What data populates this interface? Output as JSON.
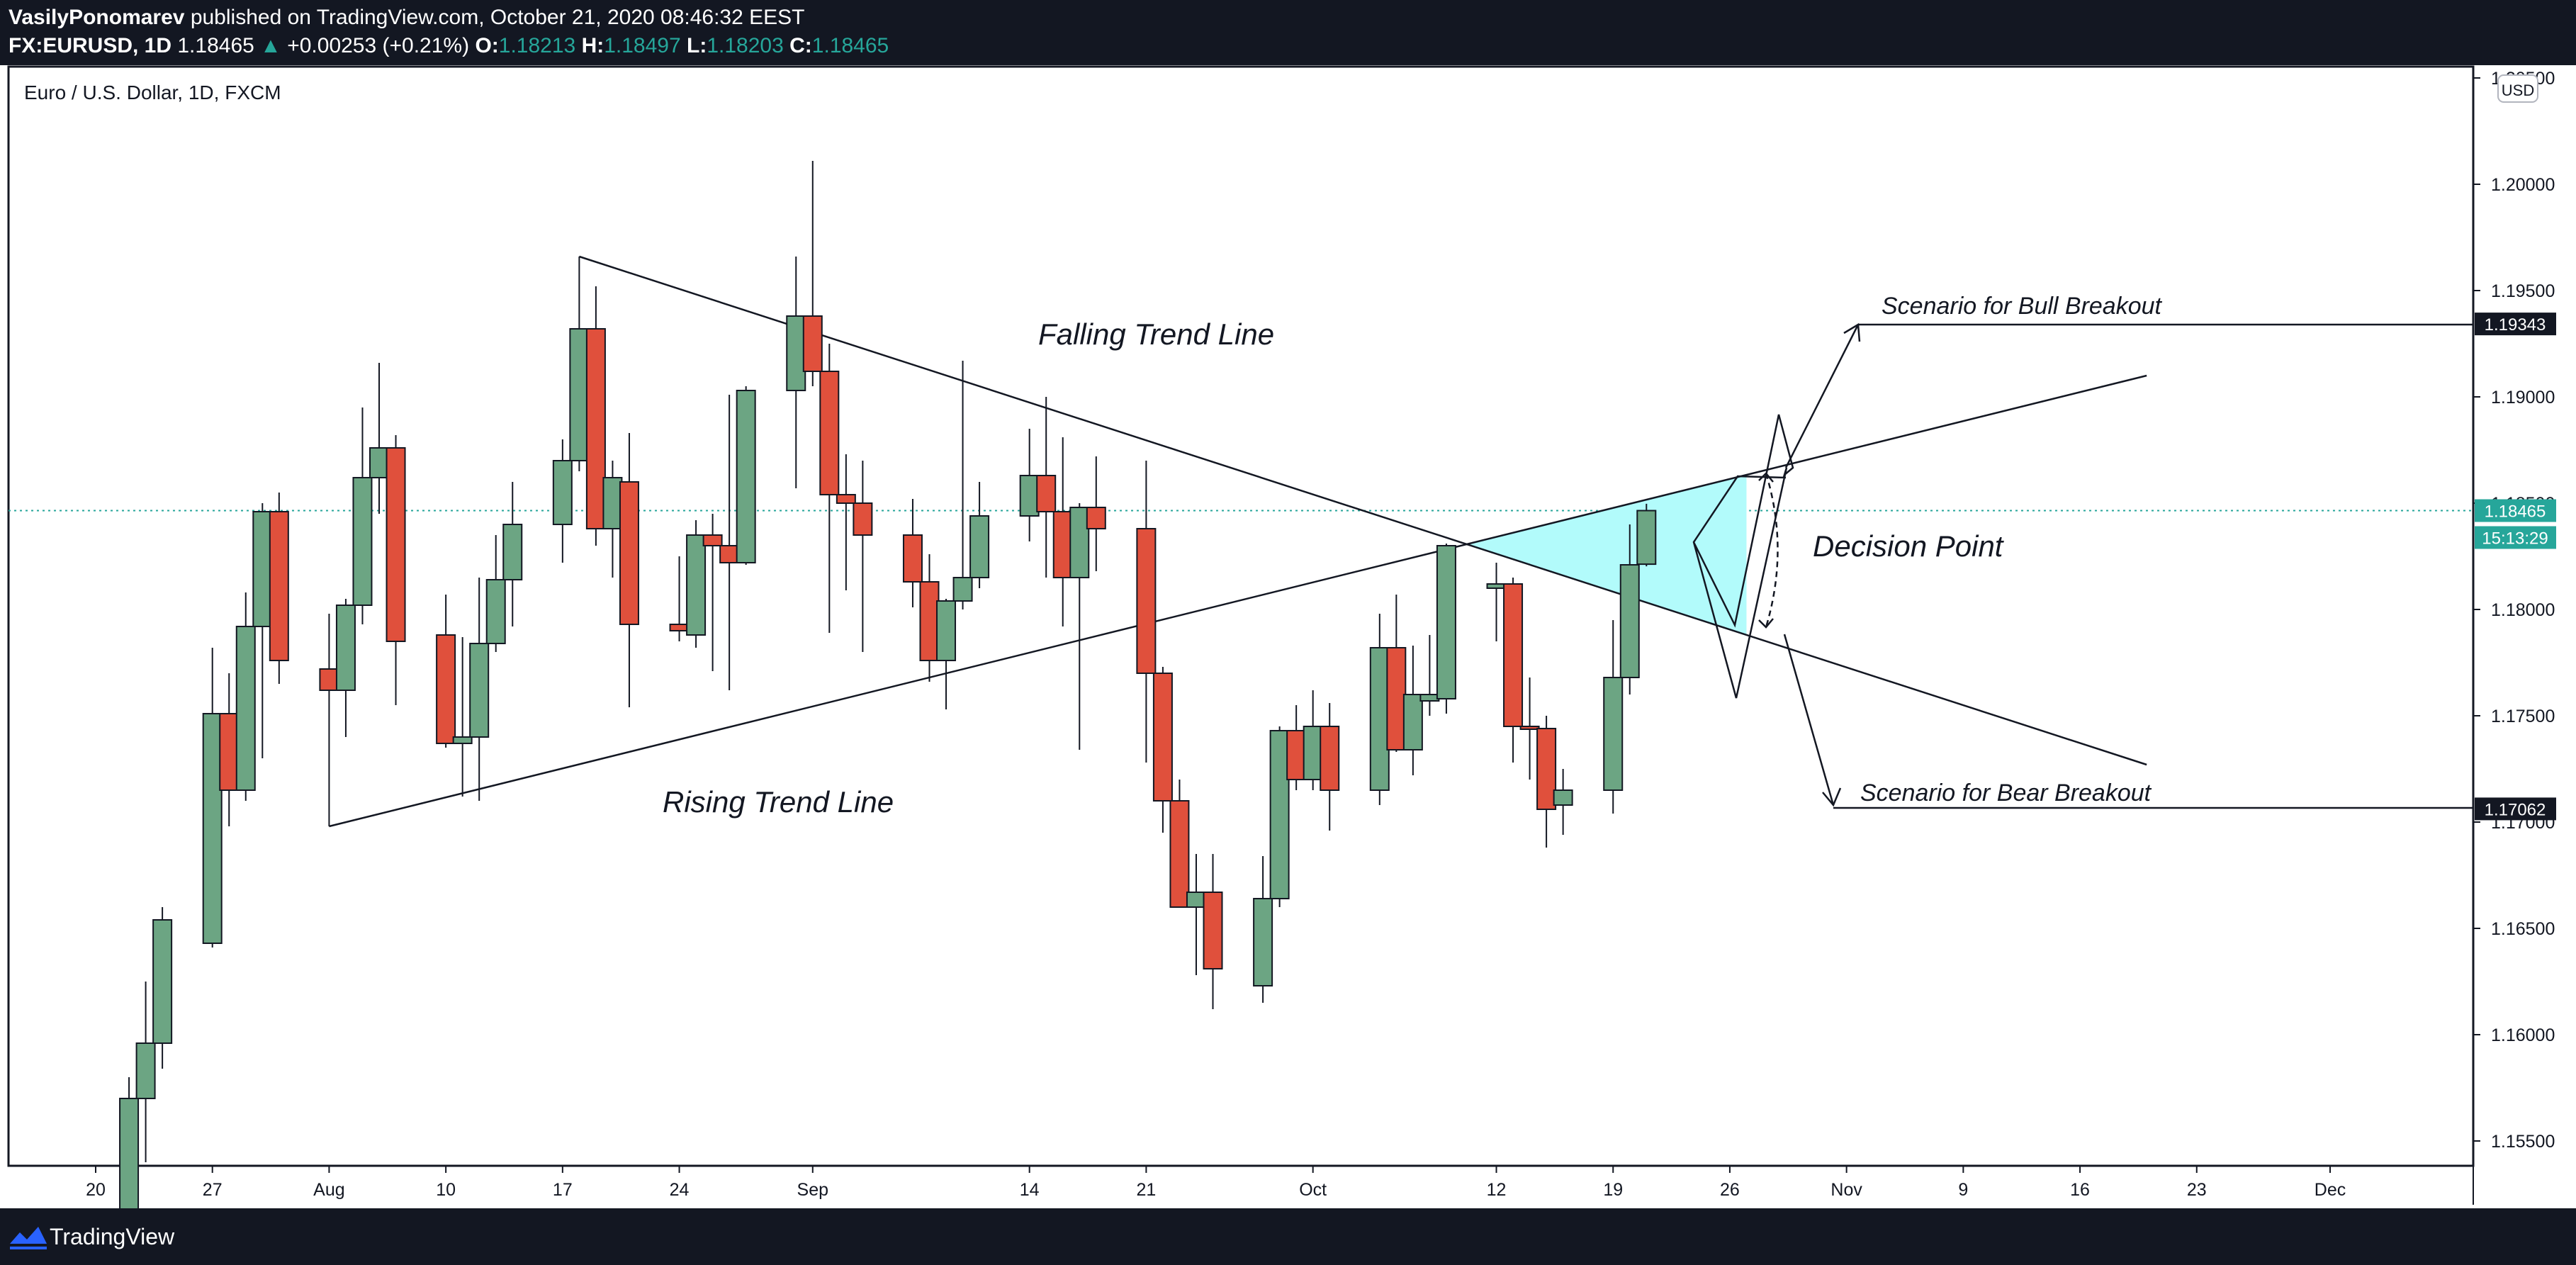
{
  "header": {
    "author": "VasilyPonomarev",
    "published": "published on TradingView.com, October 21, 2020 08:46:32 EEST",
    "symbol": "FX:EURUSD, 1D",
    "last": "1.18465",
    "change_arrow": "▲",
    "change": "+0.00253 (+0.21%)",
    "o_label": "O:",
    "o": "1.18213",
    "h_label": "H:",
    "h": "1.18497",
    "l_label": "L:",
    "l": "1.18203",
    "c_label": "C:",
    "c": "1.18465"
  },
  "chart_title": "Euro / U.S. Dollar, 1D, FXCM",
  "currency": "USD",
  "price_tags": {
    "current": "1.18465",
    "countdown": "15:13:29",
    "bull_target": "1.19343",
    "bear_target": "1.17062"
  },
  "annotations": {
    "falling": "Falling Trend Line",
    "rising": "Rising Trend Line",
    "decision": "Decision Point",
    "bull": "Scenario for Bull Breakout",
    "bear": "Scenario for Bear Breakout"
  },
  "footer": {
    "brand": "TradingView"
  },
  "colors": {
    "up": "#6ca583",
    "down": "#e0503c",
    "accent": "#26a69a",
    "decision_fill": "#b2fbfb",
    "tag_dark": "#131722"
  },
  "chart_data": {
    "type": "candlestick",
    "title": "Euro / U.S. Dollar, 1D, FXCM",
    "ylabel": "USD",
    "ylim": [
      1.1525,
      1.2056
    ],
    "y_ticks": [
      "1.15500",
      "1.16000",
      "1.16500",
      "1.17000",
      "1.17500",
      "1.18000",
      "1.18500",
      "1.19000",
      "1.19500",
      "1.20000",
      "1.20500"
    ],
    "x_ticks": [
      {
        "label": "20",
        "date": "2020-07-20"
      },
      {
        "label": "27",
        "date": "2020-07-27"
      },
      {
        "label": "Aug",
        "date": "2020-08-03"
      },
      {
        "label": "10",
        "date": "2020-08-10"
      },
      {
        "label": "17",
        "date": "2020-08-17"
      },
      {
        "label": "24",
        "date": "2020-08-24"
      },
      {
        "label": "Sep",
        "date": "2020-09-01"
      },
      {
        "label": "14",
        "date": "2020-09-14"
      },
      {
        "label": "21",
        "date": "2020-09-21"
      },
      {
        "label": "Oct",
        "date": "2020-10-01"
      },
      {
        "label": "12",
        "date": "2020-10-12"
      },
      {
        "label": "19",
        "date": "2020-10-19"
      },
      {
        "label": "26",
        "date": "2020-10-26"
      },
      {
        "label": "Nov",
        "date": "2020-11-02"
      },
      {
        "label": "9",
        "date": "2020-11-09"
      },
      {
        "label": "16",
        "date": "2020-11-16"
      },
      {
        "label": "23",
        "date": "2020-11-23"
      },
      {
        "label": "Dec",
        "date": "2020-12-01"
      }
    ],
    "candles": [
      {
        "date": "2020-07-22",
        "o": 1.15,
        "h": 1.158,
        "l": 1.149,
        "c": 1.157
      },
      {
        "date": "2020-07-23",
        "o": 1.157,
        "h": 1.1625,
        "l": 1.154,
        "c": 1.1596
      },
      {
        "date": "2020-07-24",
        "o": 1.1596,
        "h": 1.166,
        "l": 1.1584,
        "c": 1.1654
      },
      {
        "date": "2020-07-27",
        "o": 1.1643,
        "h": 1.1782,
        "l": 1.1641,
        "c": 1.1751
      },
      {
        "date": "2020-07-28",
        "o": 1.1751,
        "h": 1.177,
        "l": 1.1698,
        "c": 1.1715
      },
      {
        "date": "2020-07-29",
        "o": 1.1715,
        "h": 1.1808,
        "l": 1.171,
        "c": 1.1792
      },
      {
        "date": "2020-07-30",
        "o": 1.1792,
        "h": 1.185,
        "l": 1.173,
        "c": 1.1846
      },
      {
        "date": "2020-07-31",
        "o": 1.1846,
        "h": 1.1855,
        "l": 1.1765,
        "c": 1.1776
      },
      {
        "date": "2020-08-03",
        "o": 1.1772,
        "h": 1.1798,
        "l": 1.1698,
        "c": 1.1762
      },
      {
        "date": "2020-08-04",
        "o": 1.1762,
        "h": 1.1805,
        "l": 1.174,
        "c": 1.1802
      },
      {
        "date": "2020-08-05",
        "o": 1.1802,
        "h": 1.1895,
        "l": 1.1793,
        "c": 1.1862
      },
      {
        "date": "2020-08-06",
        "o": 1.1862,
        "h": 1.1916,
        "l": 1.1845,
        "c": 1.1876
      },
      {
        "date": "2020-08-07",
        "o": 1.1876,
        "h": 1.1882,
        "l": 1.1755,
        "c": 1.1785
      },
      {
        "date": "2020-08-10",
        "o": 1.1788,
        "h": 1.1807,
        "l": 1.1735,
        "c": 1.1737
      },
      {
        "date": "2020-08-11",
        "o": 1.1737,
        "h": 1.1787,
        "l": 1.1712,
        "c": 1.174
      },
      {
        "date": "2020-08-12",
        "o": 1.174,
        "h": 1.1815,
        "l": 1.171,
        "c": 1.1784
      },
      {
        "date": "2020-08-13",
        "o": 1.1784,
        "h": 1.1835,
        "l": 1.178,
        "c": 1.1814
      },
      {
        "date": "2020-08-14",
        "o": 1.1814,
        "h": 1.186,
        "l": 1.1792,
        "c": 1.184
      },
      {
        "date": "2020-08-17",
        "o": 1.184,
        "h": 1.188,
        "l": 1.1822,
        "c": 1.187
      },
      {
        "date": "2020-08-18",
        "o": 1.187,
        "h": 1.1966,
        "l": 1.1865,
        "c": 1.1932
      },
      {
        "date": "2020-08-19",
        "o": 1.1932,
        "h": 1.1952,
        "l": 1.183,
        "c": 1.1838
      },
      {
        "date": "2020-08-20",
        "o": 1.1838,
        "h": 1.187,
        "l": 1.1815,
        "c": 1.1862
      },
      {
        "date": "2020-08-21",
        "o": 1.186,
        "h": 1.1883,
        "l": 1.1754,
        "c": 1.1793
      },
      {
        "date": "2020-08-24",
        "o": 1.1793,
        "h": 1.1825,
        "l": 1.1785,
        "c": 1.179
      },
      {
        "date": "2020-08-25",
        "o": 1.1788,
        "h": 1.1842,
        "l": 1.1782,
        "c": 1.1835
      },
      {
        "date": "2020-08-26",
        "o": 1.1835,
        "h": 1.1845,
        "l": 1.1771,
        "c": 1.183
      },
      {
        "date": "2020-08-27",
        "o": 1.183,
        "h": 1.1901,
        "l": 1.1762,
        "c": 1.1822
      },
      {
        "date": "2020-08-28",
        "o": 1.1822,
        "h": 1.1905,
        "l": 1.1821,
        "c": 1.1903
      },
      {
        "date": "2020-08-31",
        "o": 1.1903,
        "h": 1.1966,
        "l": 1.1857,
        "c": 1.1938
      },
      {
        "date": "2020-09-01",
        "o": 1.1938,
        "h": 1.2011,
        "l": 1.1905,
        "c": 1.1912
      },
      {
        "date": "2020-09-02",
        "o": 1.1912,
        "h": 1.1925,
        "l": 1.1789,
        "c": 1.1854
      },
      {
        "date": "2020-09-03",
        "o": 1.1854,
        "h": 1.1873,
        "l": 1.1809,
        "c": 1.185
      },
      {
        "date": "2020-09-04",
        "o": 1.185,
        "h": 1.187,
        "l": 1.178,
        "c": 1.1835
      },
      {
        "date": "2020-09-07",
        "o": 1.1835,
        "h": 1.1852,
        "l": 1.1801,
        "c": 1.1813
      },
      {
        "date": "2020-09-08",
        "o": 1.1813,
        "h": 1.1826,
        "l": 1.1766,
        "c": 1.1776
      },
      {
        "date": "2020-09-09",
        "o": 1.1776,
        "h": 1.1805,
        "l": 1.1753,
        "c": 1.1804
      },
      {
        "date": "2020-09-10",
        "o": 1.1804,
        "h": 1.1917,
        "l": 1.18,
        "c": 1.1815
      },
      {
        "date": "2020-09-11",
        "o": 1.1815,
        "h": 1.186,
        "l": 1.181,
        "c": 1.1844
      },
      {
        "date": "2020-09-14",
        "o": 1.1844,
        "h": 1.1885,
        "l": 1.1832,
        "c": 1.1863
      },
      {
        "date": "2020-09-15",
        "o": 1.1863,
        "h": 1.19,
        "l": 1.1815,
        "c": 1.1846
      },
      {
        "date": "2020-09-16",
        "o": 1.1846,
        "h": 1.1881,
        "l": 1.1792,
        "c": 1.1815
      },
      {
        "date": "2020-09-17",
        "o": 1.1815,
        "h": 1.185,
        "l": 1.1734,
        "c": 1.1848
      },
      {
        "date": "2020-09-18",
        "o": 1.1848,
        "h": 1.1872,
        "l": 1.1818,
        "c": 1.1838
      },
      {
        "date": "2020-09-21",
        "o": 1.1838,
        "h": 1.187,
        "l": 1.1728,
        "c": 1.177
      },
      {
        "date": "2020-09-22",
        "o": 1.177,
        "h": 1.1773,
        "l": 1.1695,
        "c": 1.171
      },
      {
        "date": "2020-09-23",
        "o": 1.171,
        "h": 1.172,
        "l": 1.166,
        "c": 1.166
      },
      {
        "date": "2020-09-24",
        "o": 1.166,
        "h": 1.1685,
        "l": 1.1628,
        "c": 1.1667
      },
      {
        "date": "2020-09-25",
        "o": 1.1667,
        "h": 1.1685,
        "l": 1.1612,
        "c": 1.1631
      },
      {
        "date": "2020-09-28",
        "o": 1.1623,
        "h": 1.1684,
        "l": 1.1615,
        "c": 1.1664
      },
      {
        "date": "2020-09-29",
        "o": 1.1664,
        "h": 1.1745,
        "l": 1.166,
        "c": 1.1743
      },
      {
        "date": "2020-09-30",
        "o": 1.1743,
        "h": 1.1755,
        "l": 1.1715,
        "c": 1.172
      },
      {
        "date": "2020-10-01",
        "o": 1.172,
        "h": 1.1762,
        "l": 1.1715,
        "c": 1.1745
      },
      {
        "date": "2020-10-02",
        "o": 1.1745,
        "h": 1.1756,
        "l": 1.1696,
        "c": 1.1715
      },
      {
        "date": "2020-10-05",
        "o": 1.1715,
        "h": 1.1798,
        "l": 1.1708,
        "c": 1.1782
      },
      {
        "date": "2020-10-06",
        "o": 1.1782,
        "h": 1.1807,
        "l": 1.1733,
        "c": 1.1734
      },
      {
        "date": "2020-10-07",
        "o": 1.1734,
        "h": 1.1783,
        "l": 1.1722,
        "c": 1.176
      },
      {
        "date": "2020-10-08",
        "o": 1.1757,
        "h": 1.1788,
        "l": 1.175,
        "c": 1.176
      },
      {
        "date": "2020-10-09",
        "o": 1.1758,
        "h": 1.1831,
        "l": 1.1751,
        "c": 1.183
      },
      {
        "date": "2020-10-12",
        "o": 1.181,
        "h": 1.1822,
        "l": 1.1785,
        "c": 1.1812
      },
      {
        "date": "2020-10-13",
        "o": 1.1812,
        "h": 1.1815,
        "l": 1.1728,
        "c": 1.1745
      },
      {
        "date": "2020-10-14",
        "o": 1.1745,
        "h": 1.1768,
        "l": 1.172,
        "c": 1.1744
      },
      {
        "date": "2020-10-15",
        "o": 1.1744,
        "h": 1.175,
        "l": 1.1688,
        "c": 1.1706
      },
      {
        "date": "2020-10-16",
        "o": 1.1708,
        "h": 1.1725,
        "l": 1.1694,
        "c": 1.1715
      },
      {
        "date": "2020-10-19",
        "o": 1.1715,
        "h": 1.1795,
        "l": 1.1704,
        "c": 1.1768
      },
      {
        "date": "2020-10-20",
        "o": 1.1768,
        "h": 1.184,
        "l": 1.176,
        "c": 1.1821
      },
      {
        "date": "2020-10-21",
        "o": 1.18213,
        "h": 1.18497,
        "l": 1.18203,
        "c": 1.18465
      }
    ],
    "trend_lines": [
      {
        "name": "Falling Trend Line",
        "from": {
          "date": "2020-08-18",
          "price": 1.1966
        },
        "to": {
          "date": "2020-11-20",
          "price": 1.1727
        }
      },
      {
        "name": "Rising Trend Line",
        "from": {
          "date": "2020-08-03",
          "price": 1.1698
        },
        "to": {
          "date": "2020-11-20",
          "price": 1.191
        }
      }
    ],
    "current_price": 1.18465,
    "targets": {
      "bull": 1.19343,
      "bear": 1.17062
    },
    "grid": false,
    "legend": "none"
  }
}
